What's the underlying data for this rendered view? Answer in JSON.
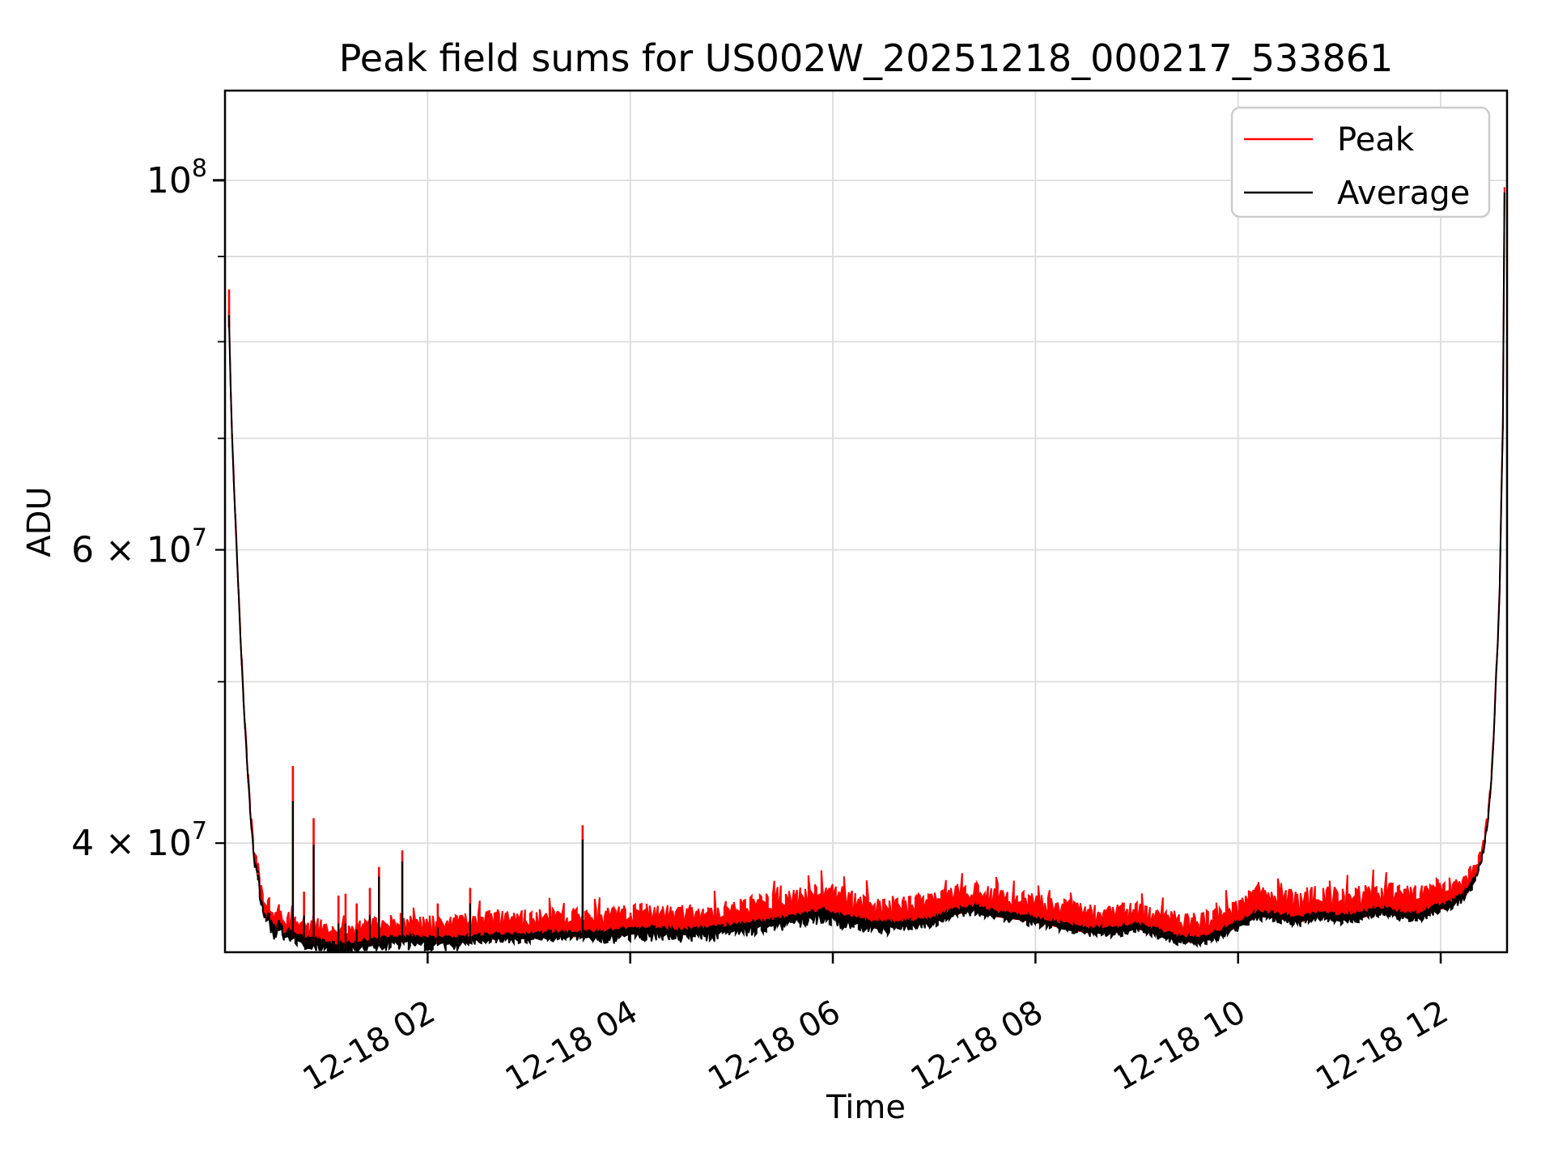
{
  "chart_data": {
    "type": "line",
    "title": "Peak field sums for US002W_20251218_000217_533861",
    "xlabel": "Time",
    "ylabel": "ADU",
    "y_scale": "log",
    "grid": "both, light gray",
    "legend_position": "upper right",
    "colors": {
      "peak": "#ff0000",
      "average": "#000000",
      "grid": "#dcdcdc",
      "spine": "#000000",
      "legend_edge": "#cccccc"
    },
    "xlim_hours_after_2025_12_18_00": [
      0,
      12.655
    ],
    "ylim": [
      34400000.0,
      113200000.0
    ],
    "x_ticks": [
      {
        "t": 2,
        "label": "12-18 02"
      },
      {
        "t": 4,
        "label": "12-18 04"
      },
      {
        "t": 6,
        "label": "12-18 06"
      },
      {
        "t": 8,
        "label": "12-18 08"
      },
      {
        "t": 10,
        "label": "12-18 10"
      },
      {
        "t": 12,
        "label": "12-18 12"
      }
    ],
    "y_ticks": [
      {
        "v": 100000000.0,
        "base": "10",
        "exp": "8",
        "major": true
      },
      {
        "v": 60000000.0,
        "base": "6 × 10",
        "exp": "7",
        "major": false
      },
      {
        "v": 40000000.0,
        "base": "4 × 10",
        "exp": "7",
        "major": false
      }
    ],
    "y_minor_unlabeled": [
      50000000.0,
      70000000.0,
      80000000.0,
      90000000.0
    ],
    "series": [
      {
        "name": "Peak",
        "color": "#ff0000"
      },
      {
        "name": "Average",
        "color": "#000000"
      }
    ],
    "average_envelope": [
      [
        0.038,
        83000000.0
      ],
      [
        0.05,
        77000000.0
      ],
      [
        0.07,
        70000000.0
      ],
      [
        0.09,
        65000000.0
      ],
      [
        0.12,
        59000000.0
      ],
      [
        0.15,
        53500000.0
      ],
      [
        0.18,
        49000000.0
      ],
      [
        0.21,
        45500000.0
      ],
      [
        0.24,
        42500000.0
      ],
      [
        0.27,
        40200000.0
      ],
      [
        0.3,
        38600000.0
      ],
      [
        0.32,
        38800000.0
      ],
      [
        0.34,
        37500000.0
      ],
      [
        0.37,
        36600000.0
      ],
      [
        0.4,
        36000000.0
      ],
      [
        0.43,
        36400000.0
      ],
      [
        0.46,
        35800000.0
      ],
      [
        0.5,
        35500000.0
      ],
      [
        0.54,
        36000000.0
      ],
      [
        0.58,
        35200000.0
      ],
      [
        0.62,
        35400000.0
      ],
      [
        0.7,
        35200000.0
      ],
      [
        0.8,
        35000000.0
      ],
      [
        0.95,
        34900000.0
      ],
      [
        1.1,
        34700000.0
      ],
      [
        1.3,
        34800000.0
      ],
      [
        1.55,
        35000000.0
      ],
      [
        1.8,
        35100000.0
      ],
      [
        2.1,
        35000000.0
      ],
      [
        2.4,
        35100000.0
      ],
      [
        2.7,
        35200000.0
      ],
      [
        3.0,
        35200000.0
      ],
      [
        3.3,
        35300000.0
      ],
      [
        3.6,
        35300000.0
      ],
      [
        3.9,
        35400000.0
      ],
      [
        4.2,
        35500000.0
      ],
      [
        4.5,
        35400000.0
      ],
      [
        4.8,
        35500000.0
      ],
      [
        5.1,
        35700000.0
      ],
      [
        5.4,
        35900000.0
      ],
      [
        5.7,
        36200000.0
      ],
      [
        5.9,
        36400000.0
      ],
      [
        6.1,
        36100000.0
      ],
      [
        6.4,
        35800000.0
      ],
      [
        6.7,
        35800000.0
      ],
      [
        7.0,
        36000000.0
      ],
      [
        7.2,
        36400000.0
      ],
      [
        7.4,
        36600000.0
      ],
      [
        7.6,
        36300000.0
      ],
      [
        7.9,
        36100000.0
      ],
      [
        8.2,
        35800000.0
      ],
      [
        8.5,
        35500000.0
      ],
      [
        8.8,
        35500000.0
      ],
      [
        9.0,
        35700000.0
      ],
      [
        9.2,
        35400000.0
      ],
      [
        9.4,
        35100000.0
      ],
      [
        9.6,
        35000000.0
      ],
      [
        9.8,
        35300000.0
      ],
      [
        10.0,
        35800000.0
      ],
      [
        10.2,
        36300000.0
      ],
      [
        10.4,
        36200000.0
      ],
      [
        10.6,
        36000000.0
      ],
      [
        10.8,
        36300000.0
      ],
      [
        11.0,
        36100000.0
      ],
      [
        11.2,
        36200000.0
      ],
      [
        11.4,
        36500000.0
      ],
      [
        11.6,
        36300000.0
      ],
      [
        11.8,
        36200000.0
      ],
      [
        11.95,
        36600000.0
      ],
      [
        12.1,
        36800000.0
      ],
      [
        12.25,
        37400000.0
      ],
      [
        12.35,
        38200000.0
      ],
      [
        12.42,
        39500000.0
      ],
      [
        12.47,
        41500000.0
      ],
      [
        12.51,
        44500000.0
      ],
      [
        12.54,
        49000000.0
      ],
      [
        12.56,
        53000000.0
      ],
      [
        12.575,
        53500000.0
      ],
      [
        12.59,
        61000000.0
      ],
      [
        12.6,
        65000000.0
      ],
      [
        12.61,
        66000000.0
      ],
      [
        12.62,
        82000000.0
      ],
      [
        12.63,
        100000000.0
      ],
      [
        12.635,
        110000000.0
      ],
      [
        12.64,
        113200000.0
      ]
    ],
    "peak_gap_above_average_rel": [
      [
        0.038,
        0.008
      ],
      [
        0.3,
        0.015
      ],
      [
        0.5,
        0.02
      ],
      [
        1.0,
        0.025
      ],
      [
        2.0,
        0.028
      ],
      [
        4.0,
        0.03
      ],
      [
        6.0,
        0.035
      ],
      [
        7.5,
        0.03
      ],
      [
        9.0,
        0.028
      ],
      [
        10.0,
        0.032
      ],
      [
        11.0,
        0.035
      ],
      [
        12.0,
        0.035
      ],
      [
        12.3,
        0.02
      ],
      [
        12.5,
        0.01
      ],
      [
        12.64,
        0.004
      ]
    ],
    "spikes": [
      {
        "t": 0.04,
        "peak": 86000000.0,
        "avg": 83000000.0
      },
      {
        "t": 0.325,
        "peak": 38400000.0,
        "avg": 38000000.0
      },
      {
        "t": 0.67,
        "peak": 44500000.0,
        "avg": 42400000.0
      },
      {
        "t": 0.78,
        "peak": 37400000.0,
        "avg": 36200000.0
      },
      {
        "t": 0.875,
        "peak": 41400000.0,
        "avg": 39900000.0
      },
      {
        "t": 1.12,
        "peak": 37200000.0,
        "avg": 35800000.0
      },
      {
        "t": 1.19,
        "peak": 37300000.0,
        "avg": 35800000.0
      },
      {
        "t": 1.3,
        "peak": 36800000.0,
        "avg": 35500000.0
      },
      {
        "t": 1.43,
        "peak": 37600000.0,
        "avg": 36200000.0
      },
      {
        "t": 1.52,
        "peak": 38700000.0,
        "avg": 38200000.0
      },
      {
        "t": 1.75,
        "peak": 39600000.0,
        "avg": 39000000.0
      },
      {
        "t": 2.1,
        "peak": 36800000.0,
        "avg": 35600000.0
      },
      {
        "t": 2.42,
        "peak": 37600000.0,
        "avg": 36800000.0
      },
      {
        "t": 3.53,
        "peak": 41000000.0,
        "avg": 40200000.0
      }
    ],
    "noise": {
      "average_band_rel_up": 0.005,
      "average_band_rel_down_quiet": 0.011,
      "average_band_rel_down_deep": 0.017,
      "deep_dip_ranges_hours": [
        [
          0.45,
          2.3
        ],
        [
          3.55,
          6.6
        ]
      ],
      "tall_red_fraction": 0.1
    }
  }
}
